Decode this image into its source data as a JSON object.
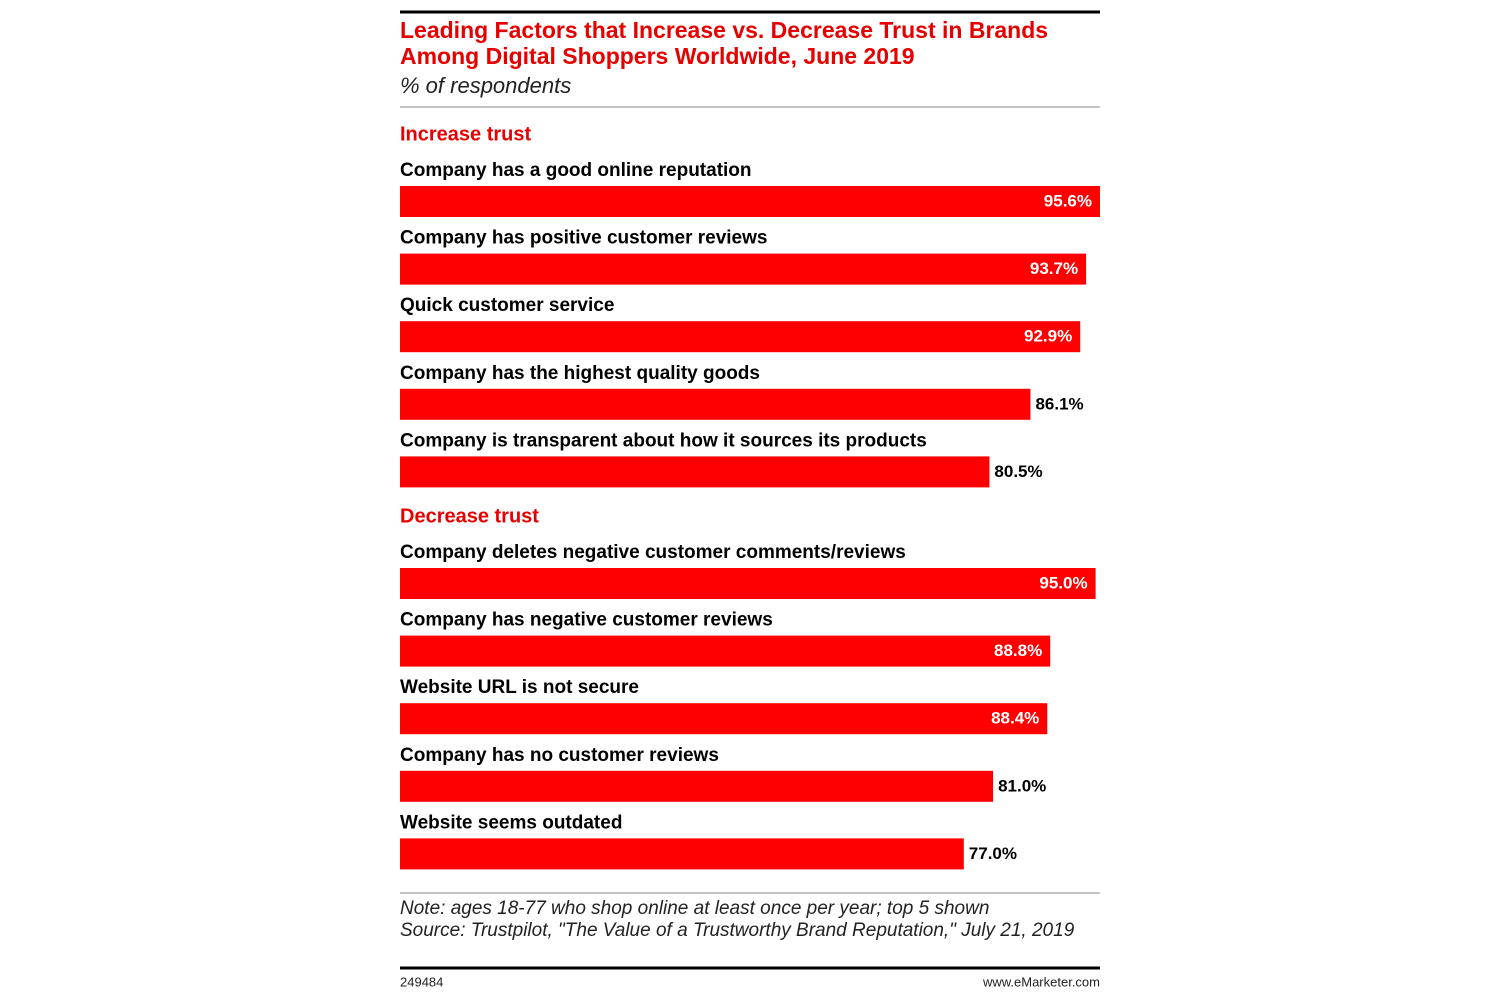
{
  "chart_data": {
    "type": "bar",
    "title": "Leading Factors that Increase vs. Decrease Trust in Brands Among Digital Shoppers Worldwide, June 2019",
    "subtitle": "% of respondents",
    "color": "#ff0000",
    "groups": [
      {
        "name": "Increase trust",
        "categories": [
          "Company has a good online reputation",
          "Company has positive customer reviews",
          "Quick customer service",
          "Company has the highest quality goods",
          "Company is transparent about how it sources its products"
        ],
        "values": [
          95.6,
          93.7,
          92.9,
          86.1,
          80.5
        ],
        "value_labels": [
          "95.6%",
          "93.7%",
          "92.9%",
          "86.1%",
          "80.5%"
        ]
      },
      {
        "name": "Decrease trust",
        "categories": [
          "Company deletes negative customer comments/reviews",
          "Company has negative customer reviews",
          "Website URL is not secure",
          "Company has no customer reviews",
          "Website seems outdated"
        ],
        "values": [
          95.0,
          88.8,
          88.4,
          81.0,
          77.0
        ],
        "value_labels": [
          "95.0%",
          "88.8%",
          "88.4%",
          "81.0%",
          "77.0%"
        ]
      }
    ],
    "note": "Note: ages 18-77 who shop online at least once per year; top 5 shown",
    "source": "Source: Trustpilot, \"The Value of a Trustworthy Brand Reputation,\" July 21, 2019",
    "chart_id": "249484",
    "credit": "www.eMarketer.com"
  }
}
